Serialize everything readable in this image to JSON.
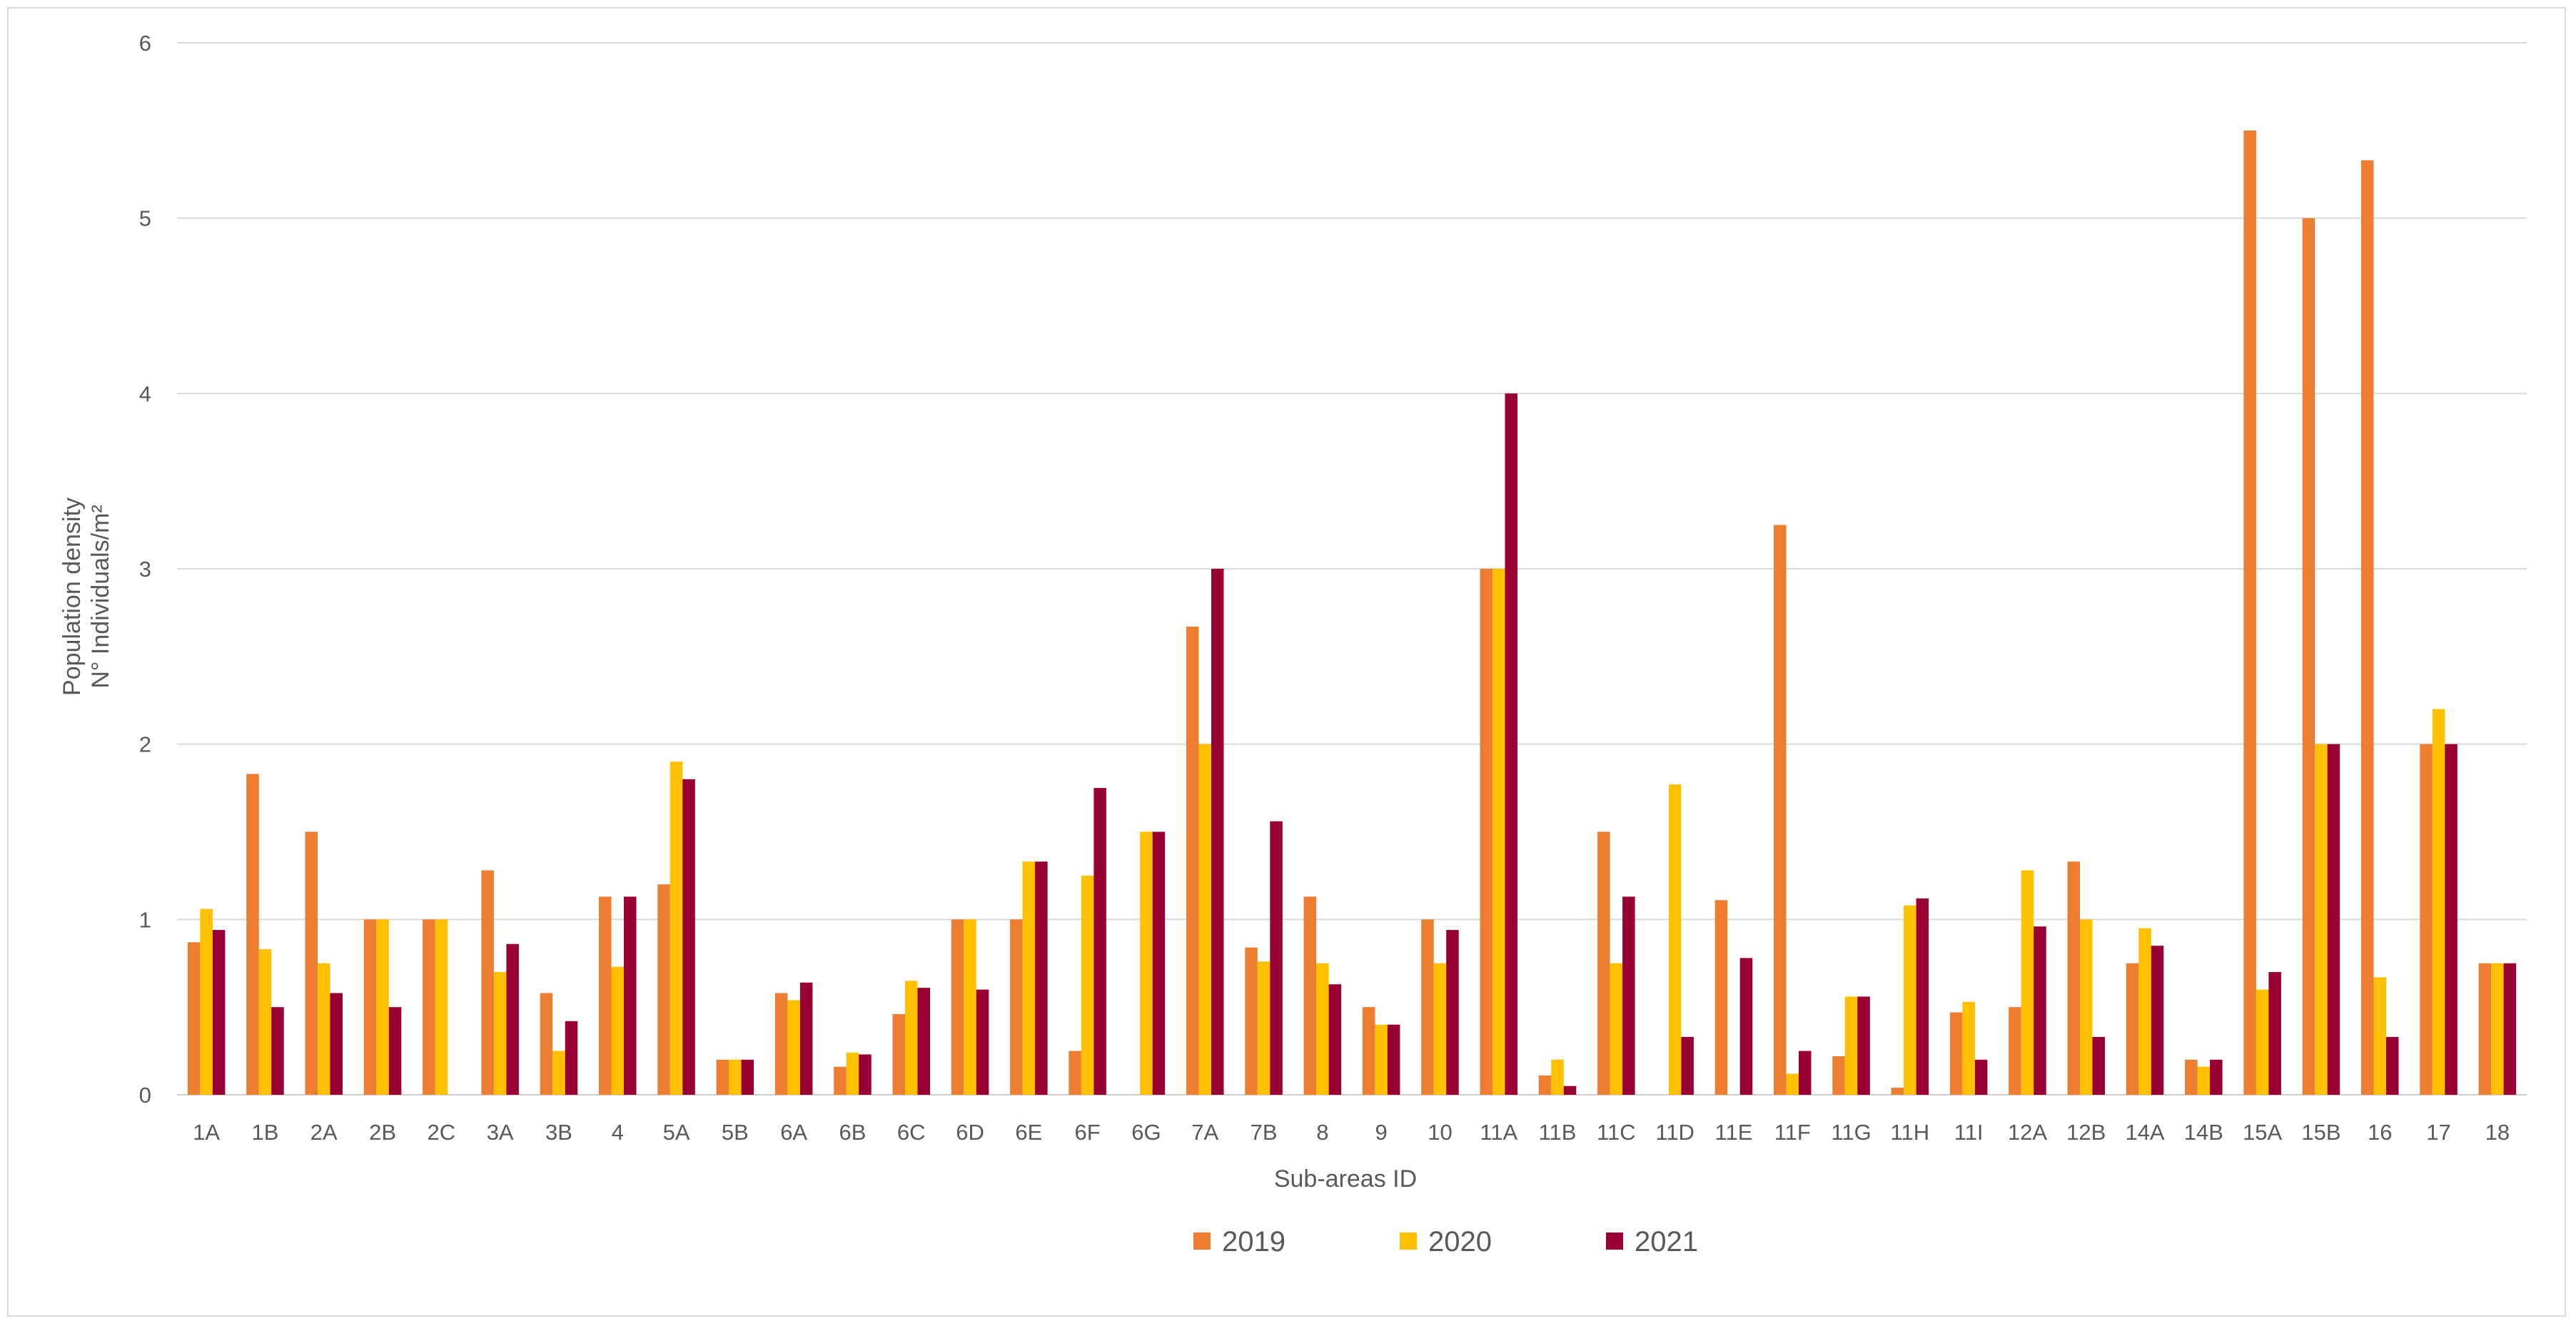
{
  "chart_data": {
    "type": "bar",
    "title": "",
    "xlabel": "Sub-areas ID",
    "ylabel": [
      "Population density",
      "N° Individuals/m²"
    ],
    "ylim": [
      0,
      6
    ],
    "yticks": [
      0,
      1,
      2,
      3,
      4,
      5,
      6
    ],
    "grid": true,
    "legend_position": "bottom",
    "categories": [
      "1A",
      "1B",
      "2A",
      "2B",
      "2C",
      "3A",
      "3B",
      "4",
      "5A",
      "5B",
      "6A",
      "6B",
      "6C",
      "6D",
      "6E",
      "6F",
      "6G",
      "7A",
      "7B",
      "8",
      "9",
      "10",
      "11A",
      "11B",
      "11C",
      "11D",
      "11E",
      "11F",
      "11G",
      "11H",
      "11I",
      "12A",
      "12B",
      "14A",
      "14B",
      "15A",
      "15B",
      "16",
      "17",
      "18"
    ],
    "series": [
      {
        "name": "2019",
        "color": "#ED7D31",
        "values": [
          0.87,
          1.83,
          1.5,
          1.0,
          1.0,
          1.28,
          0.58,
          1.13,
          1.2,
          0.2,
          0.58,
          0.16,
          0.46,
          1.0,
          1.0,
          0.25,
          0,
          2.67,
          0.84,
          1.13,
          0.5,
          1.0,
          3.0,
          0.11,
          1.5,
          0,
          1.11,
          3.25,
          0.22,
          0.04,
          0.47,
          0.5,
          1.33,
          0.75,
          0.2,
          5.5,
          5.0,
          5.33,
          2.0,
          0.75
        ]
      },
      {
        "name": "2020",
        "color": "#FFC000",
        "values": [
          1.06,
          0.83,
          0.75,
          1.0,
          1.0,
          0.7,
          0.25,
          0.73,
          1.9,
          0.2,
          0.54,
          0.24,
          0.65,
          1.0,
          1.33,
          1.25,
          1.5,
          2.0,
          0.76,
          0.75,
          0.4,
          0.75,
          3.0,
          0.2,
          0.75,
          1.77,
          0,
          0.12,
          0.56,
          1.08,
          0.53,
          1.28,
          1.0,
          0.95,
          0.16,
          0.6,
          2.0,
          0.67,
          2.2,
          0.75
        ]
      },
      {
        "name": "2021",
        "color": "#990033",
        "values": [
          0.94,
          0.5,
          0.58,
          0.5,
          0,
          0.86,
          0.42,
          1.13,
          1.8,
          0.2,
          0.64,
          0.23,
          0.61,
          0.6,
          1.33,
          1.75,
          1.5,
          3.0,
          1.56,
          0.63,
          0.4,
          0.94,
          4.0,
          0.05,
          1.13,
          0.33,
          0.78,
          0.25,
          0.56,
          1.12,
          0.2,
          0.96,
          0.33,
          0.85,
          0.2,
          0.7,
          2.0,
          0.33,
          2.0,
          0.75
        ]
      }
    ]
  }
}
